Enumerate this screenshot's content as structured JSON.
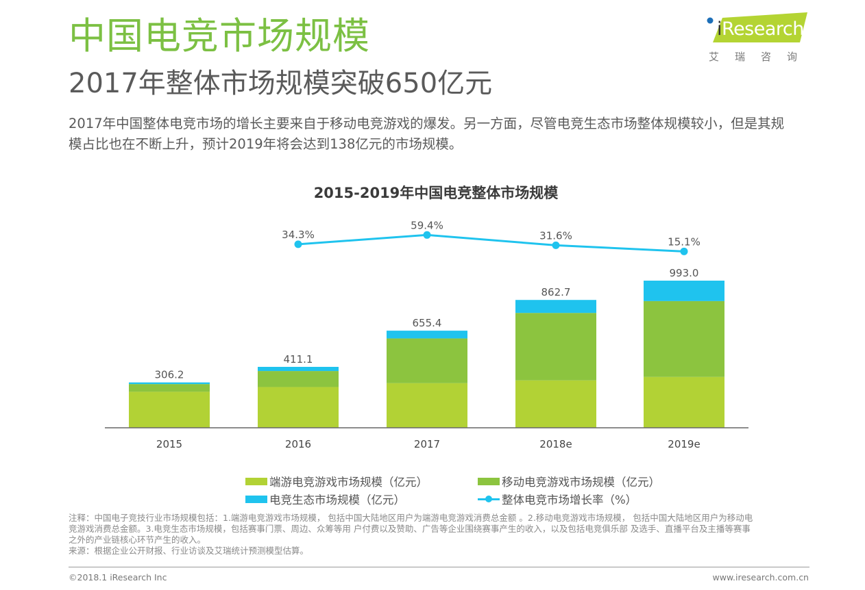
{
  "header": {
    "title": "中国电竞市场规模",
    "subtitle": "2017年整体市场规模突破650亿元",
    "body_lines": [
      "2017年中国整体电竞市场的增长主要来自于移动电竞游戏的爆发。另一方面，尽管电竞生态市场整体规模较小，但是其规",
      "模占比也在不断上升，预计2019年将会达到138亿元的市场规模。"
    ]
  },
  "logo": {
    "brand_i": "i",
    "brand_rest": "Research",
    "sub": "艾瑞咨询"
  },
  "colors": {
    "title_green": "#7cc043",
    "pc_esports": "#b2d235",
    "mobile_esports": "#8cc43f",
    "ecosystem": "#1fc3ee",
    "growth_line": "#1fc3ee"
  },
  "chart_data": {
    "type": "bar",
    "stacked": true,
    "title": "2015-2019年中国电竞整体市场规模",
    "categories": [
      "2015",
      "2016",
      "2017",
      "2018e",
      "2019e"
    ],
    "series": [
      {
        "name": "端游电竞游戏市场规模（亿元）",
        "color": "#b2d235",
        "values": [
          243,
          275,
          301,
          320,
          343
        ]
      },
      {
        "name": "移动电竞游戏市场规模（亿元）",
        "color": "#8cc43f",
        "values": [
          52,
          108,
          302,
          455,
          512
        ]
      },
      {
        "name": "电竞生态市场规模（亿元）",
        "color": "#1fc3ee",
        "values": [
          11.2,
          28.1,
          52.4,
          87.7,
          138
        ]
      }
    ],
    "totals": [
      306.2,
      411.1,
      655.4,
      862.7,
      993.0
    ],
    "total_labels": [
      "306.2",
      "411.1",
      "655.4",
      "862.7",
      "993.0"
    ],
    "line_series": {
      "name": "整体电竞市场增长率（%）",
      "type": "line",
      "categories": [
        "2016",
        "2017",
        "2018e",
        "2019e"
      ],
      "values": [
        34.3,
        59.4,
        31.6,
        15.1
      ],
      "labels": [
        "34.3%",
        "59.4%",
        "31.6%",
        "15.1%"
      ],
      "color": "#1fc3ee"
    },
    "xlabel": "",
    "ylabel": "",
    "ylim": [
      0,
      1000
    ],
    "grid": false,
    "legend_position": "bottom"
  },
  "legend": [
    {
      "label": "端游电竞游戏市场规模（亿元）",
      "kind": "box",
      "color": "#b2d235"
    },
    {
      "label": "移动电竞游戏市场规模（亿元）",
      "kind": "box",
      "color": "#8cc43f"
    },
    {
      "label": "电竞生态市场规模（亿元）",
      "kind": "box",
      "color": "#1fc3ee"
    },
    {
      "label": "整体电竞市场增长率（%）",
      "kind": "line",
      "color": "#1fc3ee"
    }
  ],
  "notes": [
    "注释：中国电子竞技行业市场规模包括：1.端游电竞游戏市场规模， 包括中国大陆地区用户为端游电竞游戏消费总金额 。2.移动电竞游戏市场规模， 包括中国大陆地区用户为移动电",
    "竞游戏消费总金额。3.电竞生态市场规模，包括赛事门票、周边、众筹等用 户付费以及赞助、广告等企业围绕赛事产生的收入，以及包括电竞俱乐部 及选手、直播平台及主播等赛事",
    "之外的产业链核心环节产生的收入。",
    "来源：根据企业公开财报、行业访谈及艾瑞统计预测模型估算。"
  ],
  "footer": {
    "copyright": "©2018.1 iResearch Inc",
    "website": "www.iresearch.com.cn"
  }
}
